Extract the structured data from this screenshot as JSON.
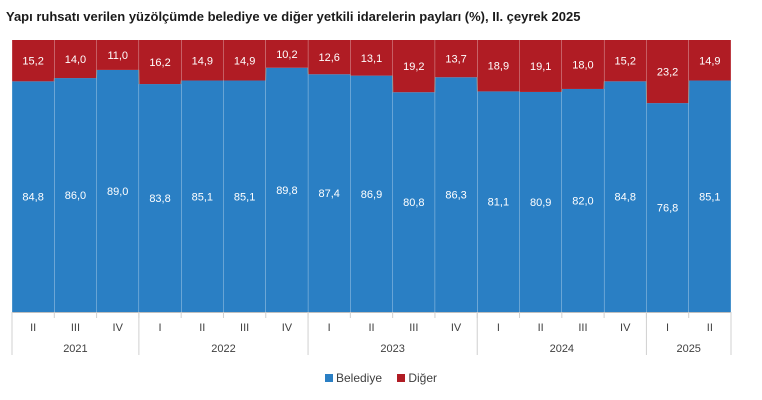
{
  "chart_data": {
    "type": "bar",
    "stacked": true,
    "percent": true,
    "title": "Yapı ruhsatı verilen yüzölçümde belediye ve diğer yetkili idarelerin payları (%), II. çeyrek 2025",
    "xlabel": "",
    "ylabel": "",
    "ylim": [
      0,
      100
    ],
    "grid": false,
    "legend_position": "bottom",
    "categories": [
      "II",
      "III",
      "IV",
      "I",
      "II",
      "III",
      "IV",
      "I",
      "II",
      "III",
      "IV",
      "I",
      "II",
      "III",
      "IV",
      "I",
      "II"
    ],
    "years": [
      {
        "label": "2021",
        "count": 3
      },
      {
        "label": "2022",
        "count": 4
      },
      {
        "label": "2023",
        "count": 4
      },
      {
        "label": "2024",
        "count": 4
      },
      {
        "label": "2025",
        "count": 2
      }
    ],
    "series": [
      {
        "name": "Belediye",
        "color": "#2a7fc4",
        "values": [
          84.8,
          86.0,
          89.0,
          83.8,
          85.1,
          85.1,
          89.8,
          87.4,
          86.9,
          80.8,
          86.3,
          81.1,
          80.9,
          82.0,
          84.8,
          76.8,
          85.1
        ],
        "labels": [
          "84,8",
          "86,0",
          "89,0",
          "83,8",
          "85,1",
          "85,1",
          "89,8",
          "87,4",
          "86,9",
          "80,8",
          "86,3",
          "81,1",
          "80,9",
          "82,0",
          "84,8",
          "76,8",
          "85,1"
        ]
      },
      {
        "name": "Diğer",
        "color": "#b01c24",
        "values": [
          15.2,
          14.0,
          11.0,
          16.2,
          14.9,
          14.9,
          10.2,
          12.6,
          13.1,
          19.2,
          13.7,
          18.9,
          19.1,
          18.0,
          15.2,
          23.2,
          14.9
        ],
        "labels": [
          "15,2",
          "14,0",
          "11,0",
          "16,2",
          "14,9",
          "14,9",
          "10,2",
          "12,6",
          "13,1",
          "19,2",
          "13,7",
          "18,9",
          "19,1",
          "18,0",
          "15,2",
          "23,2",
          "14,9"
        ]
      }
    ]
  }
}
